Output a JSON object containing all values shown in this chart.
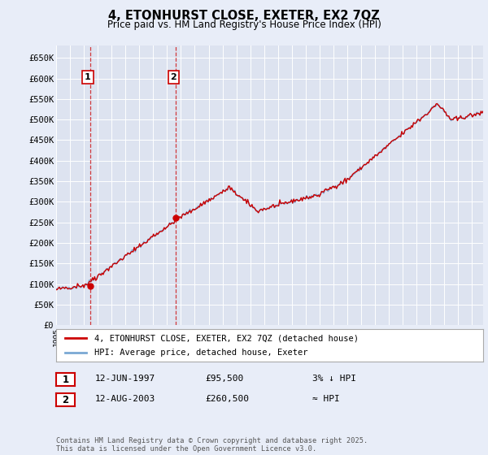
{
  "title": "4, ETONHURST CLOSE, EXETER, EX2 7QZ",
  "subtitle": "Price paid vs. HM Land Registry's House Price Index (HPI)",
  "ylim": [
    0,
    680000
  ],
  "yticks": [
    0,
    50000,
    100000,
    150000,
    200000,
    250000,
    300000,
    350000,
    400000,
    450000,
    500000,
    550000,
    600000,
    650000
  ],
  "ytick_labels": [
    "£0",
    "£50K",
    "£100K",
    "£150K",
    "£200K",
    "£250K",
    "£300K",
    "£350K",
    "£400K",
    "£450K",
    "£500K",
    "£550K",
    "£600K",
    "£650K"
  ],
  "xlim_start": 1995.0,
  "xlim_end": 2025.8,
  "background_color": "#e8edf8",
  "plot_bg_color": "#dde3f0",
  "grid_color": "#ffffff",
  "sale1_date": 1997.44,
  "sale1_price": 95500,
  "sale2_date": 2003.61,
  "sale2_price": 260500,
  "line_color_price": "#cc0000",
  "line_color_hpi": "#7aa8d4",
  "legend_label_price": "4, ETONHURST CLOSE, EXETER, EX2 7QZ (detached house)",
  "legend_label_hpi": "HPI: Average price, detached house, Exeter",
  "note1_num": "1",
  "note1_date": "12-JUN-1997",
  "note1_price": "£95,500",
  "note1_rel": "3% ↓ HPI",
  "note2_num": "2",
  "note2_date": "12-AUG-2003",
  "note2_price": "£260,500",
  "note2_rel": "≈ HPI",
  "footer": "Contains HM Land Registry data © Crown copyright and database right 2025.\nThis data is licensed under the Open Government Licence v3.0."
}
